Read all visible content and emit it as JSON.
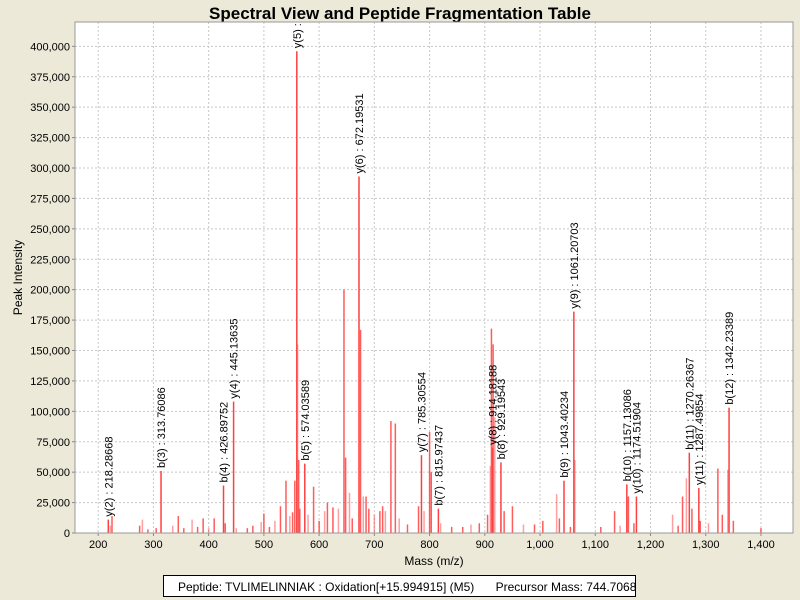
{
  "chart_data": {
    "type": "bar",
    "title": "Spectral View and Peptide Fragmentation Table",
    "xlabel": "Mass (m/z)",
    "ylabel": "Peak Intensity",
    "xlim": [
      158,
      1458
    ],
    "ylim": [
      0,
      420000
    ],
    "xticks": [
      200,
      300,
      400,
      500,
      600,
      700,
      800,
      900,
      1000,
      1100,
      1200,
      1300,
      1400
    ],
    "xtick_labels": [
      "200",
      "300",
      "400",
      "500",
      "600",
      "700",
      "800",
      "900",
      "1,000",
      "1,100",
      "1,200",
      "1,300",
      "1,400"
    ],
    "yticks": [
      0,
      25000,
      50000,
      75000,
      100000,
      125000,
      150000,
      175000,
      200000,
      225000,
      250000,
      275000,
      300000,
      325000,
      350000,
      375000,
      400000
    ],
    "ytick_labels": [
      "0",
      "25,000",
      "50,000",
      "75,000",
      "100,000",
      "125,000",
      "150,000",
      "175,000",
      "200,000",
      "225,000",
      "250,000",
      "275,000",
      "300,000",
      "325,000",
      "350,000",
      "375,000",
      "400,000"
    ],
    "grid": true,
    "bar_color": "#ff4040",
    "annotated_peaks": [
      {
        "mass": 218.28668,
        "intensity": 11000,
        "label": "y(2) : 218.28668"
      },
      {
        "mass": 313.76086,
        "intensity": 51000,
        "label": "b(3) : 313.76086"
      },
      {
        "mass": 426.89752,
        "intensity": 39000,
        "label": "b(4) : 426.89752"
      },
      {
        "mass": 445.13635,
        "intensity": 108000,
        "label": "y(4) : 445.13635"
      },
      {
        "mass": 559.6,
        "intensity": 396000,
        "label": "y(5) :"
      },
      {
        "mass": 574.03589,
        "intensity": 57000,
        "label": "b(5) : 574.03589"
      },
      {
        "mass": 672.19531,
        "intensity": 293000,
        "label": "y(6) : 672.19531"
      },
      {
        "mass": 785.30554,
        "intensity": 64000,
        "label": "y(7) : 785.30554"
      },
      {
        "mass": 815.97437,
        "intensity": 20000,
        "label": "b(7) : 815.97437"
      },
      {
        "mass": 914.18188,
        "intensity": 70000,
        "label": "y(8) : 914.18188"
      },
      {
        "mass": 929.19543,
        "intensity": 58000,
        "label": "b(8) : 929.19543"
      },
      {
        "mass": 1043.40234,
        "intensity": 43000,
        "label": "b(9) : 1043.40234"
      },
      {
        "mass": 1061.20703,
        "intensity": 182000,
        "label": "y(9) : 1061.20703"
      },
      {
        "mass": 1157.13086,
        "intensity": 40000,
        "label": "b(10) : 1157.13086"
      },
      {
        "mass": 1174.51904,
        "intensity": 30000,
        "label": "y(10) : 1174.51904"
      },
      {
        "mass": 1270.26367,
        "intensity": 66000,
        "label": "b(11) : 1270.26367"
      },
      {
        "mass": 1287.49854,
        "intensity": 37000,
        "label": "y(11) : 1287.49854"
      },
      {
        "mass": 1342.23389,
        "intensity": 103000,
        "label": "b(12) : 1342.23389"
      }
    ],
    "other_peaks": [
      [
        222,
        6000
      ],
      [
        225,
        14000
      ],
      [
        275,
        6000
      ],
      [
        280,
        11000
      ],
      [
        290,
        3000
      ],
      [
        305,
        4000
      ],
      [
        335,
        6000
      ],
      [
        345,
        14000
      ],
      [
        355,
        4000
      ],
      [
        370,
        11000
      ],
      [
        380,
        5000
      ],
      [
        390,
        12000
      ],
      [
        400,
        4000
      ],
      [
        410,
        12000
      ],
      [
        430,
        8000
      ],
      [
        450,
        4000
      ],
      [
        470,
        4000
      ],
      [
        480,
        6000
      ],
      [
        495,
        9000
      ],
      [
        500,
        16000
      ],
      [
        510,
        5000
      ],
      [
        520,
        10000
      ],
      [
        530,
        22000
      ],
      [
        540,
        43000
      ],
      [
        547,
        14000
      ],
      [
        552,
        17000
      ],
      [
        556,
        43000
      ],
      [
        561,
        155000
      ],
      [
        563,
        60000
      ],
      [
        565,
        20000
      ],
      [
        580,
        15000
      ],
      [
        590,
        38000
      ],
      [
        600,
        10000
      ],
      [
        610,
        18000
      ],
      [
        615,
        25000
      ],
      [
        625,
        21000
      ],
      [
        635,
        20000
      ],
      [
        645,
        200000
      ],
      [
        648,
        62000
      ],
      [
        655,
        33000
      ],
      [
        660,
        12000
      ],
      [
        675,
        167000
      ],
      [
        680,
        30000
      ],
      [
        685,
        30000
      ],
      [
        690,
        20000
      ],
      [
        700,
        15000
      ],
      [
        710,
        18000
      ],
      [
        715,
        22000
      ],
      [
        720,
        18000
      ],
      [
        730,
        92000
      ],
      [
        738,
        90000
      ],
      [
        745,
        12000
      ],
      [
        760,
        7000
      ],
      [
        780,
        22000
      ],
      [
        790,
        18000
      ],
      [
        800,
        83000
      ],
      [
        803,
        50000
      ],
      [
        820,
        8000
      ],
      [
        840,
        5000
      ],
      [
        860,
        5000
      ],
      [
        875,
        7000
      ],
      [
        890,
        8000
      ],
      [
        905,
        15000
      ],
      [
        910,
        55000
      ],
      [
        912,
        168000
      ],
      [
        915,
        155000
      ],
      [
        918,
        95000
      ],
      [
        935,
        18000
      ],
      [
        950,
        22000
      ],
      [
        970,
        7000
      ],
      [
        990,
        7000
      ],
      [
        1005,
        10000
      ],
      [
        1030,
        32000
      ],
      [
        1035,
        12000
      ],
      [
        1055,
        5000
      ],
      [
        1063,
        60000
      ],
      [
        1110,
        5000
      ],
      [
        1135,
        18000
      ],
      [
        1145,
        6000
      ],
      [
        1160,
        30000
      ],
      [
        1170,
        8000
      ],
      [
        1240,
        15000
      ],
      [
        1250,
        6000
      ],
      [
        1258,
        30000
      ],
      [
        1265,
        45000
      ],
      [
        1275,
        20000
      ],
      [
        1290,
        10000
      ],
      [
        1305,
        8000
      ],
      [
        1322,
        53000
      ],
      [
        1330,
        15000
      ],
      [
        1340,
        52000
      ],
      [
        1350,
        10000
      ],
      [
        1400,
        4000
      ]
    ]
  },
  "footer": {
    "peptide": "Peptide: TVLIMELINNIAK : Oxidation[+15.994915] (M5)",
    "precursor": "Precursor Mass: 744.7068"
  }
}
